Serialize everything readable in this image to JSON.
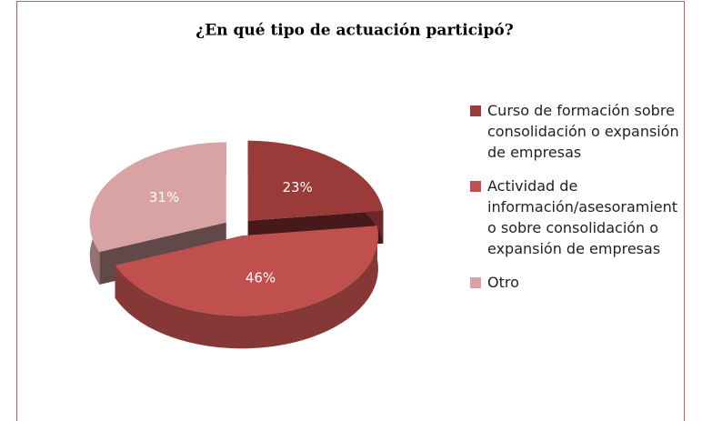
{
  "chart_data": {
    "type": "pie",
    "title": "¿En qué tipo de actuación participó?",
    "categories": [
      "Curso de formación sobre consolidación o expansión de empresas",
      "Actividad de información/asesoramiento sobre consolidación o expansión de empresas",
      "Otro"
    ],
    "values": [
      23,
      46,
      31
    ],
    "value_labels": [
      "23%",
      "46%",
      "31%"
    ],
    "colors": [
      "#9b3a3a",
      "#c0504d",
      "#d9a3a3"
    ],
    "legend": "right"
  }
}
